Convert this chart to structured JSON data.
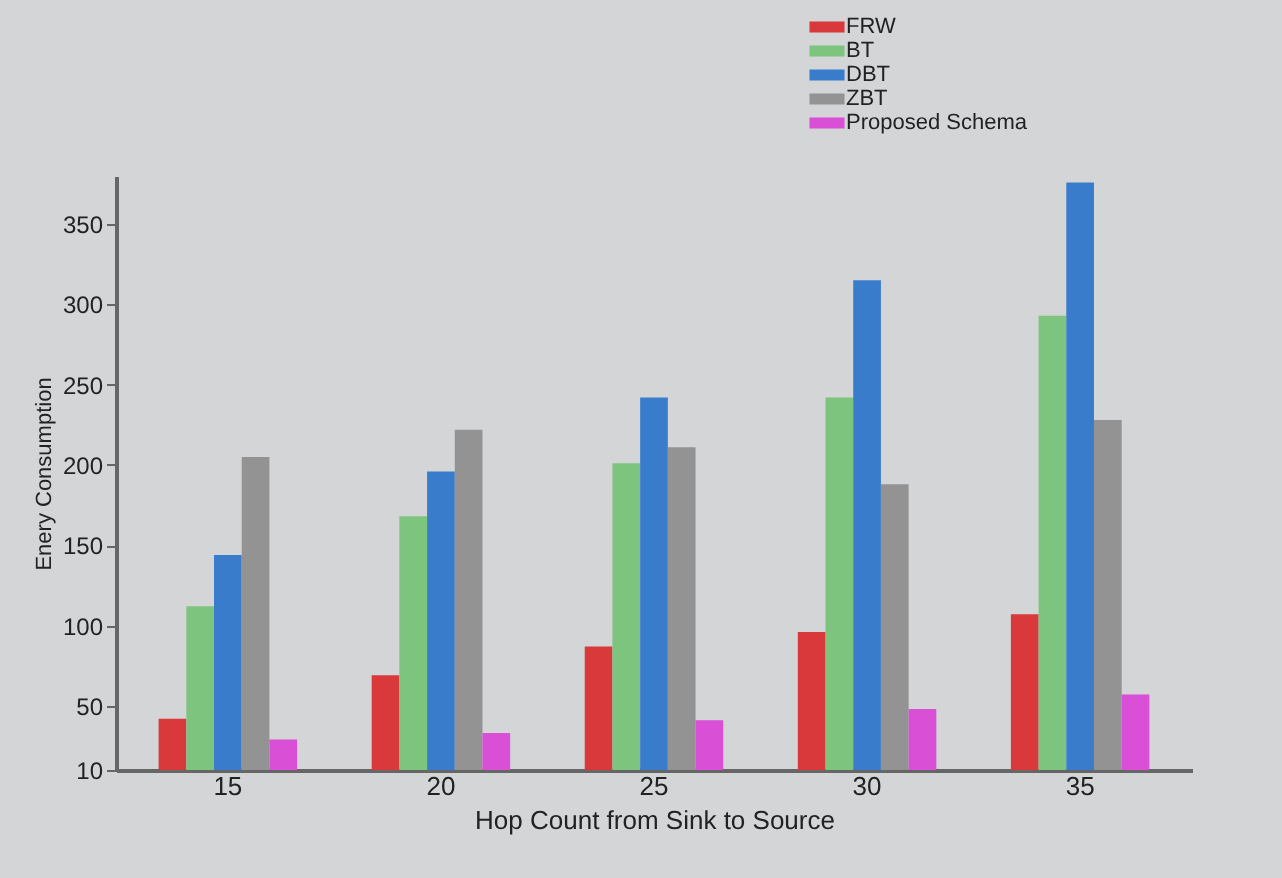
{
  "chart_data": {
    "type": "bar",
    "xlabel": "Hop Count from Sink to Source",
    "ylabel": "Enery Consumption",
    "categories": [
      "15",
      "20",
      "25",
      "30",
      "35"
    ],
    "series": [
      {
        "name": "FRW",
        "color": "#d9393a",
        "values": [
          42,
          69,
          87,
          96,
          107
        ]
      },
      {
        "name": "BT",
        "color": "#7dc47f",
        "values": [
          112,
          168,
          201,
          242,
          293
        ]
      },
      {
        "name": "DBT",
        "color": "#3a7ccc",
        "values": [
          144,
          196,
          242,
          315,
          376
        ]
      },
      {
        "name": "ZBT",
        "color": "#939393",
        "values": [
          205,
          222,
          211,
          188,
          228
        ]
      },
      {
        "name": "Proposed Schema",
        "color": "#d94fd6",
        "values": [
          29,
          33,
          41,
          48,
          57
        ]
      }
    ],
    "ylim": [
      10,
      380
    ],
    "yticks": [
      10,
      50,
      100,
      150,
      200,
      250,
      300,
      350
    ],
    "grid": false,
    "legend": "top right"
  }
}
